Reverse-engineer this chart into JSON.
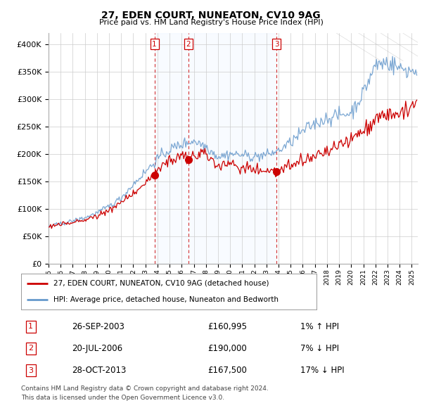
{
  "title": "27, EDEN COURT, NUNEATON, CV10 9AG",
  "subtitle": "Price paid vs. HM Land Registry's House Price Index (HPI)",
  "legend_line1": "27, EDEN COURT, NUNEATON, CV10 9AG (detached house)",
  "legend_line2": "HPI: Average price, detached house, Nuneaton and Bedworth",
  "footer1": "Contains HM Land Registry data © Crown copyright and database right 2024.",
  "footer2": "This data is licensed under the Open Government Licence v3.0.",
  "sales": [
    {
      "num": 1,
      "date": "26-SEP-2003",
      "price": 160995,
      "label": "1% ↑ HPI",
      "year": 2003.75
    },
    {
      "num": 2,
      "date": "20-JUL-2006",
      "price": 190000,
      "label": "7% ↓ HPI",
      "year": 2006.54
    },
    {
      "num": 3,
      "date": "28-OCT-2013",
      "price": 167500,
      "label": "17% ↓ HPI",
      "year": 2013.83
    }
  ],
  "sale_marker_color": "#cc0000",
  "sale_vline_color": "#cc0000",
  "hpi_line_color": "#6699cc",
  "house_line_color": "#cc0000",
  "shade_color": "#ddeeff",
  "background_color": "#ffffff",
  "grid_color": "#cccccc",
  "ylim": [
    0,
    420000
  ],
  "yticks": [
    0,
    50000,
    100000,
    150000,
    200000,
    250000,
    300000,
    350000,
    400000
  ],
  "xlim_start": 1995.0,
  "xlim_end": 2025.5
}
